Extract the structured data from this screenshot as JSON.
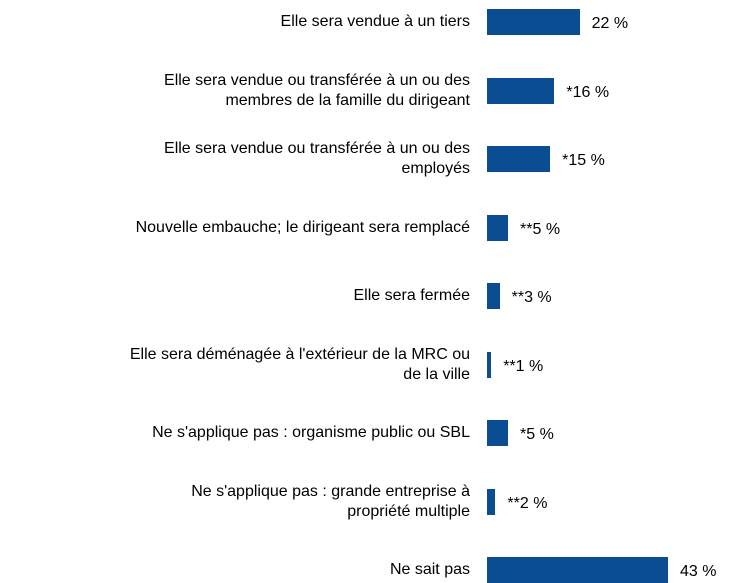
{
  "chart_data": {
    "type": "barh",
    "categories": [
      "Elle sera vendue à un tiers",
      "Elle sera vendue ou transférée à un ou des\nmembres de la famille du dirigeant",
      "Elle sera vendue ou transférée à un ou des\nemployés",
      "Nouvelle embauche; le dirigeant sera remplacé",
      "Elle sera fermée",
      "Elle sera déménagée à l'extérieur de la MRC ou\nde la ville",
      "Ne s'applique pas : organisme public ou SBL",
      "Ne s'applique pas : grande entreprise à\npropriété multiple",
      "Ne sait pas"
    ],
    "values": [
      22,
      16,
      15,
      5,
      3,
      1,
      5,
      2,
      43
    ],
    "value_labels": [
      "22 %",
      "*16 %",
      "*15 %",
      "**5 %",
      "**3 %",
      "**1 %",
      "*5 %",
      "**2 %",
      "43 %"
    ],
    "color": "#0b4d93"
  }
}
